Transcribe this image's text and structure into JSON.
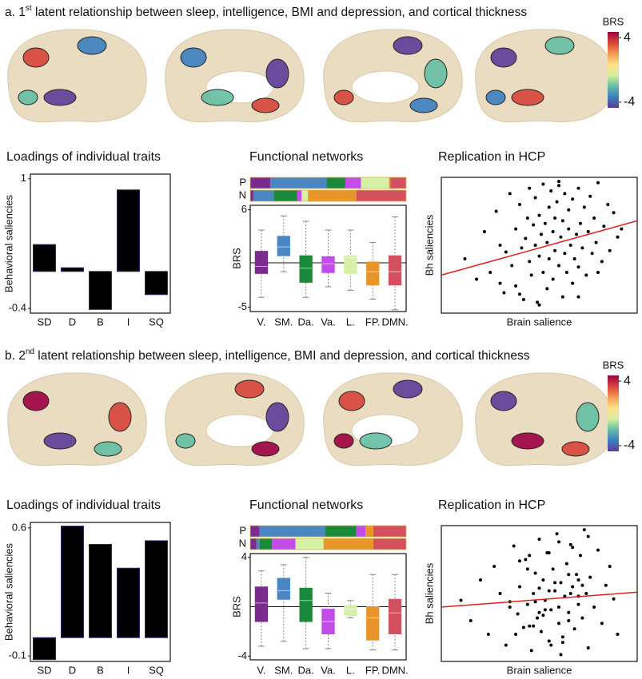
{
  "panels": [
    {
      "title": [
        "a. 1",
        "st",
        " latent relationship between sleep, intelligence, BMI and depression, and cortical thickness"
      ],
      "colorbar": {
        "label": "BRS",
        "lim": [
          -4.7,
          4.7
        ],
        "ticks": [
          -4,
          4
        ],
        "colors": [
          "#5e3c99",
          "#3b7fc0",
          "#64bfa4",
          "#d8ee9c",
          "#fde08b",
          "#f59a4f",
          "#d8443a",
          "#9e0142"
        ]
      }
    },
    {
      "title": [
        "b. 2",
        "nd",
        " latent relationship between sleep, intelligence, BMI and depression, and cortical thickness"
      ],
      "colorbar": {
        "label": "BRS",
        "lim": [
          -4.7,
          4.7
        ],
        "ticks": [
          -4,
          4
        ],
        "colors": [
          "#5e3c99",
          "#3b7fc0",
          "#64bfa4",
          "#d8ee9c",
          "#fde08b",
          "#f59a4f",
          "#d8443a",
          "#9e0142"
        ]
      }
    }
  ],
  "chart_data": [
    {
      "type": "bar",
      "title": "Loadings of individual traits",
      "y_label": "Behavioral saliencies",
      "categories": [
        "SD",
        "D",
        "B",
        "I",
        "SQ"
      ],
      "values": [
        0.29,
        0.04,
        -0.41,
        0.88,
        -0.25
      ],
      "color": "#000000",
      "edgecolor": "#2d2a6e",
      "ylim": [
        -0.45,
        1.05
      ],
      "yticks": [
        -0.4,
        1
      ]
    },
    {
      "type": "box",
      "title": "Functional networks",
      "y_label": "BRS",
      "categories": [
        "V.",
        "SM.",
        "Da.",
        "Va.",
        "L.",
        "FP.",
        "DMN."
      ],
      "colors": [
        "#7b2a8e",
        "#4a86c4",
        "#1a8a3a",
        "#c24bea",
        "#d6f0a8",
        "#e8962a",
        "#d4505e"
      ],
      "whisker_low": [
        -3.9,
        -1,
        -3.9,
        -2.7,
        -3.1,
        -4.1,
        -5.3
      ],
      "q1": [
        -1.2,
        0.8,
        -2.2,
        -1.1,
        -1.2,
        -2.5,
        -2.5
      ],
      "median": [
        -0.4,
        1.8,
        -0.6,
        -0.1,
        0.6,
        -1,
        -1
      ],
      "q3": [
        1.3,
        3,
        0.8,
        0.7,
        0.8,
        0.1,
        0.8
      ],
      "whisker_high": [
        3.7,
        5.3,
        4.7,
        3.7,
        3.7,
        2.3,
        5.2
      ],
      "hline": 0,
      "ylim": [
        -5.5,
        6.5
      ],
      "yticks": [
        -5,
        6
      ],
      "proportions": [
        {
          "label": "P",
          "values": [
            13,
            36,
            12,
            10,
            18,
            1,
            10
          ]
        },
        {
          "label": "N",
          "values": [
            2,
            13,
            15,
            3,
            4,
            31,
            32
          ]
        }
      ],
      "proportion_lim": [
        0,
        100
      ]
    },
    {
      "type": "scatter",
      "title": "Replication in HCP",
      "x_label": "Brain salience",
      "y_label": "Bh saliencies",
      "color": "#000000",
      "fit_color": "#e02020",
      "xlim": [
        0,
        100
      ],
      "ylim": [
        0,
        100
      ],
      "x": [
        12,
        18,
        22,
        25,
        28,
        30,
        32,
        33,
        35,
        36,
        38,
        38,
        40,
        41,
        42,
        43,
        44,
        45,
        45,
        46,
        47,
        48,
        48,
        49,
        50,
        50,
        51,
        52,
        52,
        53,
        54,
        54,
        55,
        55,
        56,
        57,
        57,
        58,
        58,
        59,
        60,
        60,
        61,
        62,
        62,
        63,
        63,
        64,
        65,
        65,
        66,
        67,
        67,
        68,
        69,
        70,
        70,
        71,
        72,
        73,
        74,
        75,
        76,
        77,
        78,
        79,
        80,
        82,
        83,
        85,
        86,
        88,
        90,
        92,
        30,
        40,
        50,
        60,
        70,
        80
      ],
      "y": [
        40,
        25,
        60,
        30,
        75,
        50,
        15,
        45,
        88,
        35,
        62,
        20,
        80,
        48,
        10,
        55,
        70,
        38,
        92,
        28,
        65,
        50,
        85,
        8,
        42,
        72,
        58,
        95,
        30,
        66,
        18,
        52,
        78,
        40,
        90,
        60,
        25,
        70,
        46,
        82,
        35,
        94,
        56,
        12,
        68,
        44,
        88,
        30,
        62,
        76,
        50,
        22,
        84,
        40,
        58,
        92,
        34,
        66,
        48,
        78,
        28,
        60,
        86,
        44,
        70,
        52,
        96,
        38,
        64,
        80,
        46,
        74,
        56,
        62,
        22,
        14,
        6,
        97,
        12,
        30
      ],
      "fit_line": {
        "x": [
          0,
          100
        ],
        "y": [
          28,
          68
        ]
      }
    },
    {
      "type": "bar",
      "title": "Loadings of individual traits",
      "y_label": "Behavioral saliencies",
      "categories": [
        "SD",
        "D",
        "B",
        "I",
        "SQ"
      ],
      "values": [
        -0.12,
        0.61,
        0.51,
        0.38,
        0.53
      ],
      "color": "#000000",
      "edgecolor": "#2d2a6e",
      "ylim": [
        -0.13,
        0.63
      ],
      "yticks": [
        -0.1,
        0.6
      ]
    },
    {
      "type": "box",
      "title": "Functional networks",
      "y_label": "BRS",
      "categories": [
        "V.",
        "SM.",
        "Da.",
        "Va.",
        "L.",
        "FP.",
        "DMN."
      ],
      "colors": [
        "#7b2a8e",
        "#4a86c4",
        "#1a8a3a",
        "#c24bea",
        "#d6f0a8",
        "#e8962a",
        "#d4505e"
      ],
      "whisker_low": [
        -3.2,
        -2.8,
        -3.4,
        -3.4,
        -0.9,
        -3.5,
        -3.5
      ],
      "q1": [
        -1.2,
        0.6,
        -1.2,
        -2.2,
        -0.7,
        -2.7,
        -2.2
      ],
      "median": [
        0.3,
        1.3,
        0.5,
        -1.2,
        -0.2,
        -0.9,
        -0.5
      ],
      "q3": [
        1.6,
        2.3,
        1.5,
        -0.2,
        0.1,
        0,
        0.6
      ],
      "whisker_high": [
        2.9,
        3.4,
        4,
        1.1,
        0.5,
        2.6,
        2.6
      ],
      "hline": 0,
      "ylim": [
        -4.3,
        4.3
      ],
      "yticks": [
        -4,
        4
      ],
      "proportions": [
        {
          "label": "P",
          "values": [
            6,
            42,
            20,
            6,
            0,
            5,
            21
          ]
        },
        {
          "label": "N",
          "values": [
            4,
            2,
            8,
            15,
            18,
            32,
            21
          ]
        }
      ],
      "proportion_lim": [
        0,
        100
      ]
    },
    {
      "type": "scatter",
      "title": "Replication in HCP",
      "x_label": "Brain salience",
      "y_label": "Bh saliencies",
      "color": "#000000",
      "fit_color": "#e02020",
      "xlim": [
        0,
        100
      ],
      "ylim": [
        0,
        100
      ],
      "x": [
        10,
        15,
        20,
        24,
        27,
        30,
        33,
        35,
        37,
        39,
        40,
        42,
        43,
        44,
        46,
        47,
        48,
        49,
        50,
        51,
        52,
        53,
        54,
        55,
        56,
        57,
        58,
        59,
        60,
        61,
        62,
        63,
        64,
        65,
        66,
        67,
        68,
        69,
        70,
        71,
        72,
        73,
        74,
        75,
        76,
        78,
        80,
        82,
        84,
        86,
        88,
        90,
        45,
        50,
        55,
        60,
        65,
        70,
        35,
        40,
        45,
        50,
        55,
        60,
        65,
        70,
        75,
        52,
        58,
        62,
        48,
        44,
        66,
        72,
        38,
        56,
        61,
        67,
        53,
        47
      ],
      "y": [
        45,
        30,
        60,
        20,
        70,
        50,
        12,
        40,
        85,
        35,
        55,
        25,
        75,
        42,
        8,
        50,
        65,
        32,
        90,
        22,
        60,
        45,
        80,
        15,
        38,
        68,
        52,
        94,
        28,
        58,
        18,
        48,
        72,
        36,
        86,
        55,
        24,
        64,
        42,
        78,
        32,
        97,
        50,
        10,
        62,
        40,
        82,
        28,
        56,
        70,
        46,
        20,
        78,
        36,
        52,
        88,
        30,
        60,
        44,
        74,
        26,
        54,
        80,
        40,
        64,
        48,
        92,
        34,
        58,
        14,
        44,
        68,
        50,
        56,
        20,
        12,
        5,
        84,
        38,
        26
      ],
      "fit_line": {
        "x": [
          0,
          100
        ],
        "y": [
          40,
          51
        ]
      }
    }
  ]
}
